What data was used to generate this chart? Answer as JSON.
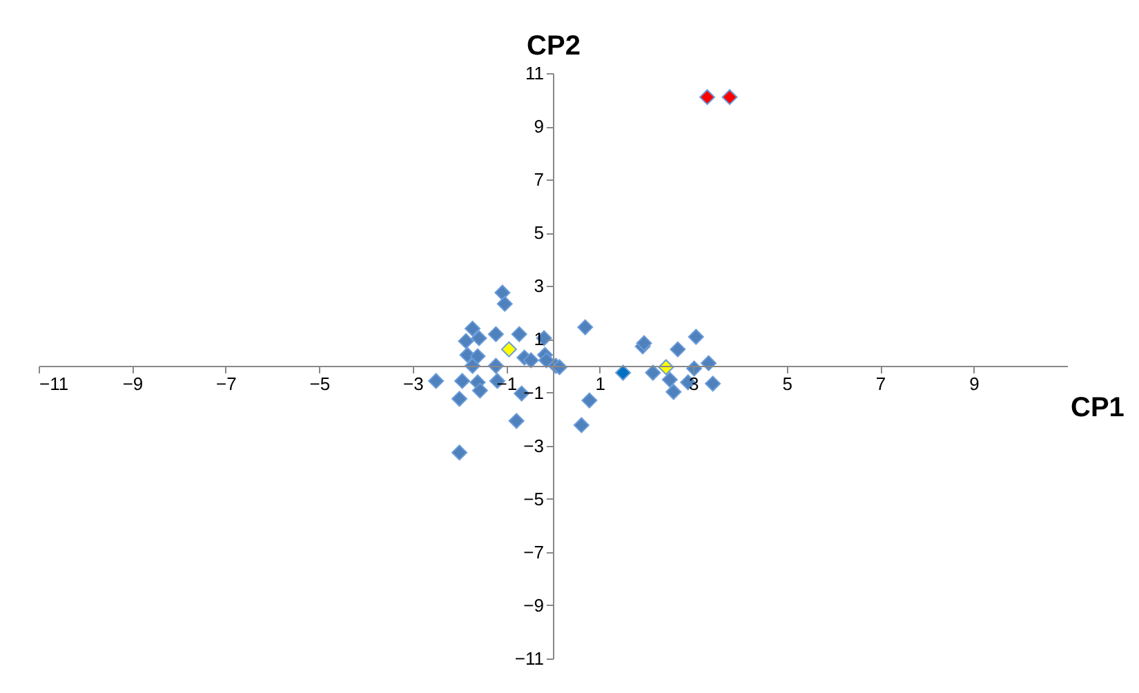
{
  "chart_data": {
    "type": "scatter",
    "xlabel": "CP1",
    "ylabel": "CP2",
    "marker": "diamond",
    "grid": false,
    "xlim": [
      -11,
      11
    ],
    "ylim": [
      -11,
      11
    ],
    "xticks": [
      -11,
      -9,
      -7,
      -5,
      -3,
      -1,
      1,
      3,
      5,
      7,
      9
    ],
    "yticks": [
      -11,
      -9,
      -7,
      -5,
      -3,
      -1,
      1,
      3,
      5,
      7,
      9,
      11
    ],
    "series": [
      {
        "color": "#4f81bd",
        "x": [
          -1.08,
          -1.03,
          -1.72,
          -1.22,
          -0.72,
          -0.19,
          -1.86,
          -1.58,
          -1.83,
          -1.61,
          -0.61,
          -0.47,
          -0.17,
          -0.14,
          0.06,
          0.14,
          -1.72,
          -1.22,
          -2.5,
          -1.94,
          -1.61,
          -1.19,
          -1.56,
          -0.67,
          -2.0,
          0.78,
          -0.78,
          0.61,
          -2.0,
          0.69,
          1.92,
          1.95,
          2.14,
          2.67,
          3.06,
          2.5,
          2.58,
          3.02,
          3.33,
          2.89,
          3.42
        ],
        "values": [
          2.75,
          2.33,
          1.4,
          1.19,
          1.19,
          1.04,
          0.93,
          1.04,
          0.41,
          0.36,
          0.31,
          0.21,
          0.41,
          0.21,
          0.0,
          -0.05,
          0.0,
          0.0,
          -0.57,
          -0.57,
          -0.62,
          -0.57,
          -0.93,
          -1.04,
          -1.24,
          -1.3,
          -2.07,
          -2.23,
          -3.26,
          1.45,
          0.73,
          0.85,
          -0.26,
          0.62,
          1.09,
          -0.52,
          -0.98,
          -0.1,
          0.1,
          -0.62,
          -0.67
        ]
      },
      {
        "color": "#0070c0",
        "x": [
          1.5
        ],
        "values": [
          -0.26
        ]
      },
      {
        "color": "#ffff00",
        "x": [
          -0.94,
          2.42
        ],
        "values": [
          0.62,
          -0.05
        ]
      },
      {
        "color": "#ff0000",
        "x": [
          3.3,
          3.78
        ],
        "values": [
          10.1,
          10.1
        ]
      }
    ]
  }
}
